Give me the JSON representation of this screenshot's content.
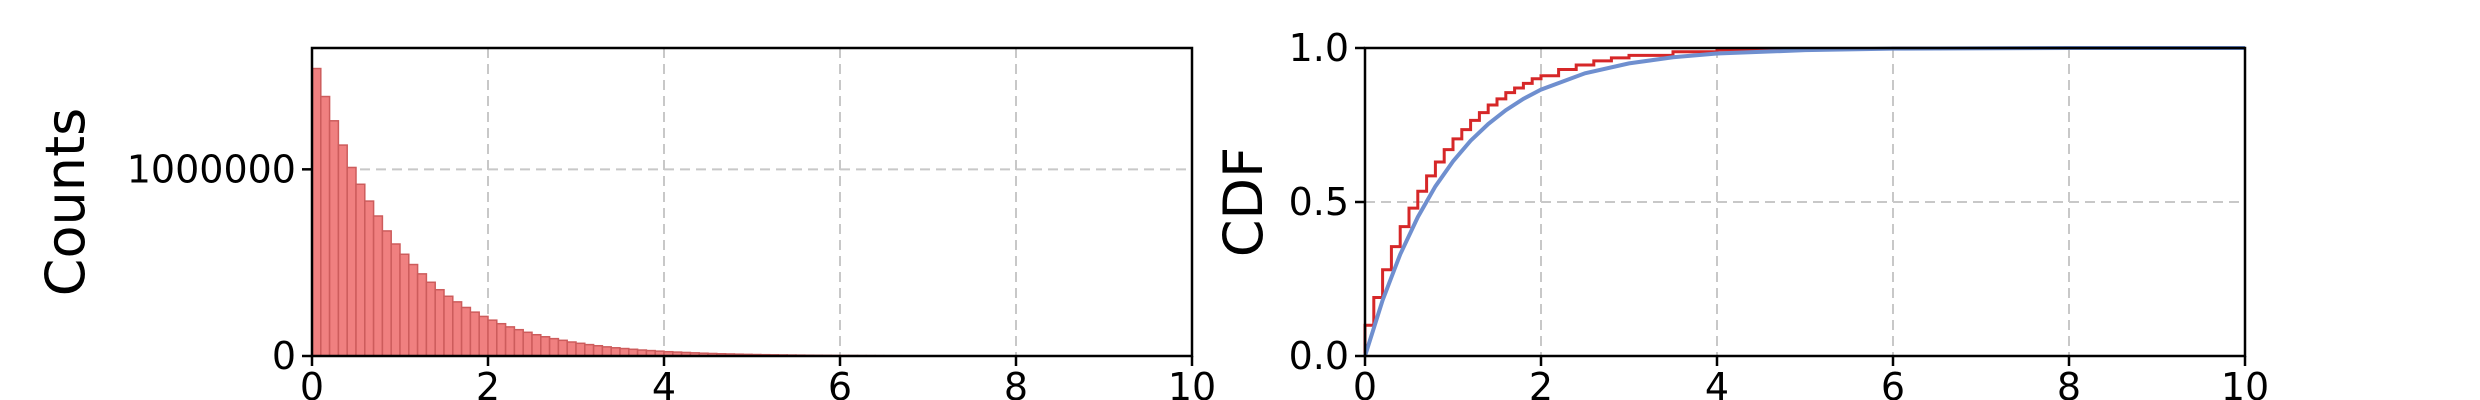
{
  "chart_data": [
    {
      "type": "bar",
      "subtype": "histogram",
      "xlabel": "",
      "ylabel": "Counts",
      "xlim": [
        0,
        10
      ],
      "ylim": [
        0,
        1650000
      ],
      "xticks": [
        "0",
        "2",
        "4",
        "6",
        "8",
        "10"
      ],
      "yticks": [
        "0",
        "1000000"
      ],
      "grid": true,
      "bar_color": "#f08080",
      "edge_color": "#cd5c5c",
      "bin_width": 0.1,
      "bin_start": 0,
      "values": [
        1540000,
        1390000,
        1260000,
        1130000,
        1010000,
        920000,
        830000,
        750000,
        670000,
        600000,
        545000,
        490000,
        440000,
        395000,
        355000,
        320000,
        290000,
        260000,
        235000,
        212000,
        192000,
        173000,
        156000,
        141000,
        127000,
        114000,
        103000,
        93000,
        84000,
        75000,
        68000,
        61000,
        55000,
        49000,
        44000,
        40000,
        36000,
        32000,
        29000,
        26000,
        23000,
        21000,
        19000,
        17000,
        15000,
        13500,
        12000,
        11000,
        9800,
        8800,
        7900,
        7100,
        6400,
        5700,
        5100,
        4600,
        4100,
        3700,
        3300,
        3000,
        2700,
        2400,
        2100,
        1900,
        1700,
        1500,
        1400,
        1200,
        1100,
        1000
      ]
    },
    {
      "type": "line",
      "xlabel": "",
      "ylabel": "CDF",
      "xlim": [
        0,
        10
      ],
      "ylim": [
        0,
        1
      ],
      "xticks": [
        "0",
        "2",
        "4",
        "6",
        "8",
        "10"
      ],
      "yticks": [
        "0.0",
        "0.5",
        "1.0"
      ],
      "grid": true,
      "series": [
        {
          "style": "step",
          "color": "#d62728",
          "step_width": 0.1,
          "x": [
            0,
            0.1,
            0.2,
            0.3,
            0.4,
            0.5,
            0.6,
            0.7,
            0.8,
            0.9,
            1.0,
            1.1,
            1.2,
            1.3,
            1.4,
            1.5,
            1.6,
            1.7,
            1.8,
            1.9,
            2.0,
            2.2,
            2.4,
            2.6,
            2.8,
            3.0,
            3.5,
            4.0,
            4.5,
            5.0,
            6.0,
            7.0
          ],
          "y": [
            0.1,
            0.19,
            0.28,
            0.355,
            0.42,
            0.48,
            0.535,
            0.585,
            0.63,
            0.67,
            0.705,
            0.735,
            0.765,
            0.79,
            0.815,
            0.835,
            0.855,
            0.87,
            0.885,
            0.9,
            0.91,
            0.93,
            0.945,
            0.958,
            0.968,
            0.976,
            0.988,
            0.994,
            0.997,
            0.998,
            0.999,
            1.0
          ]
        },
        {
          "style": "line",
          "color": "#6f8fcf",
          "x": [
            0,
            0.2,
            0.4,
            0.6,
            0.8,
            1.0,
            1.2,
            1.4,
            1.6,
            1.8,
            2.0,
            2.5,
            3.0,
            3.5,
            4.0,
            5.0,
            6.0,
            8.0,
            10.0
          ],
          "y": [
            0,
            0.181,
            0.33,
            0.451,
            0.551,
            0.632,
            0.699,
            0.753,
            0.798,
            0.835,
            0.865,
            0.918,
            0.95,
            0.97,
            0.982,
            0.993,
            0.998,
            1.0,
            1.0
          ]
        }
      ]
    }
  ]
}
